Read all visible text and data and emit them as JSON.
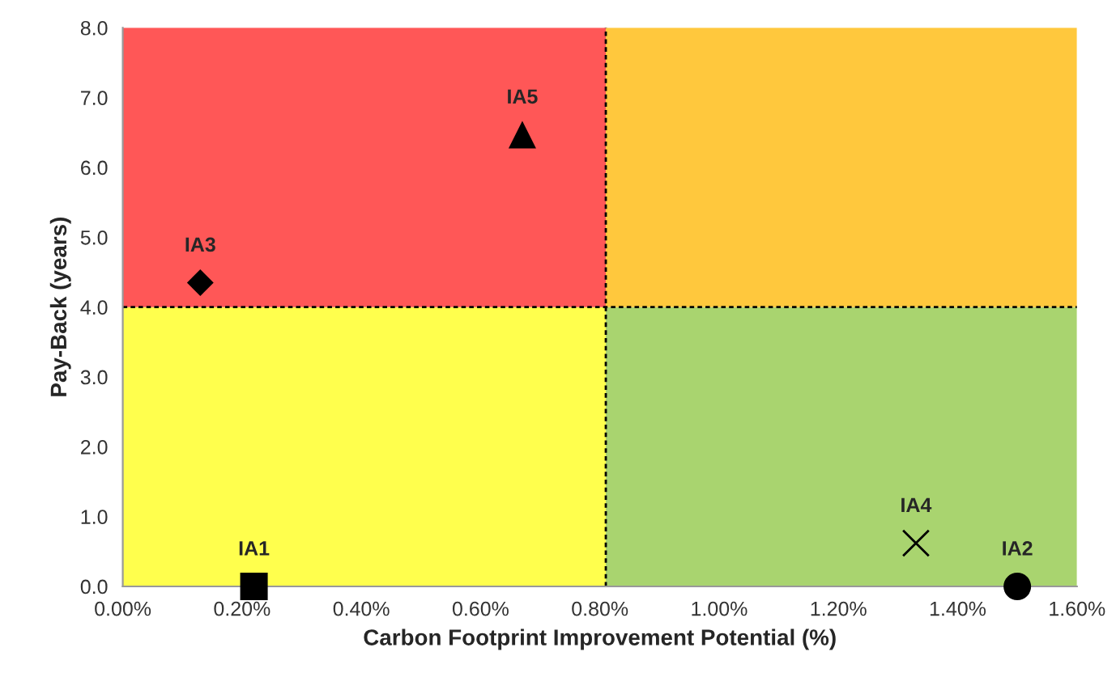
{
  "chart_data": {
    "type": "scatter",
    "xlabel": "Carbon Footprint Improvement Potential (%)",
    "ylabel": "Pay-Back (years)",
    "xlim": [
      0,
      1.6
    ],
    "ylim": [
      0,
      8
    ],
    "xticks": [
      {
        "value": 0,
        "label": "0.00%"
      },
      {
        "value": 0.2,
        "label": "0.20%"
      },
      {
        "value": 0.4,
        "label": "0.40%"
      },
      {
        "value": 0.6,
        "label": "0.60%"
      },
      {
        "value": 0.8,
        "label": "0.80%"
      },
      {
        "value": 1.0,
        "label": "1.00%"
      },
      {
        "value": 1.2,
        "label": "1.20%"
      },
      {
        "value": 1.4,
        "label": "1.40%"
      },
      {
        "value": 1.6,
        "label": "1.60%"
      }
    ],
    "yticks": [
      {
        "value": 0,
        "label": "0.0"
      },
      {
        "value": 1,
        "label": "1.0"
      },
      {
        "value": 2,
        "label": "2.0"
      },
      {
        "value": 3,
        "label": "3.0"
      },
      {
        "value": 4,
        "label": "4.0"
      },
      {
        "value": 5,
        "label": "5.0"
      },
      {
        "value": 6,
        "label": "6.0"
      },
      {
        "value": 7,
        "label": "7.0"
      },
      {
        "value": 8,
        "label": "8.0"
      }
    ],
    "grid": false,
    "legend": false,
    "ref_lines": [
      {
        "axis": "x",
        "value": 0.81,
        "line_style": "dashed",
        "color": "#000000"
      },
      {
        "axis": "y",
        "value": 4,
        "line_style": "dashed",
        "color": "#000000"
      }
    ],
    "series": [
      {
        "name": "IA1",
        "color": "#000000",
        "marker": "square",
        "x": [
          0.22
        ],
        "values": [
          0
        ]
      },
      {
        "name": "IA2",
        "color": "#000000",
        "marker": "circle",
        "x": [
          1.5
        ],
        "values": [
          0
        ]
      },
      {
        "name": "IA3",
        "color": "#000000",
        "marker": "diamond",
        "x": [
          0.13
        ],
        "values": [
          4.35
        ]
      },
      {
        "name": "IA4",
        "color": "#000000",
        "marker": "cross",
        "x": [
          1.33
        ],
        "values": [
          0.62
        ]
      },
      {
        "name": "IA5",
        "color": "#000000",
        "marker": "triangle",
        "x": [
          0.67
        ],
        "values": [
          6.47
        ]
      }
    ]
  }
}
